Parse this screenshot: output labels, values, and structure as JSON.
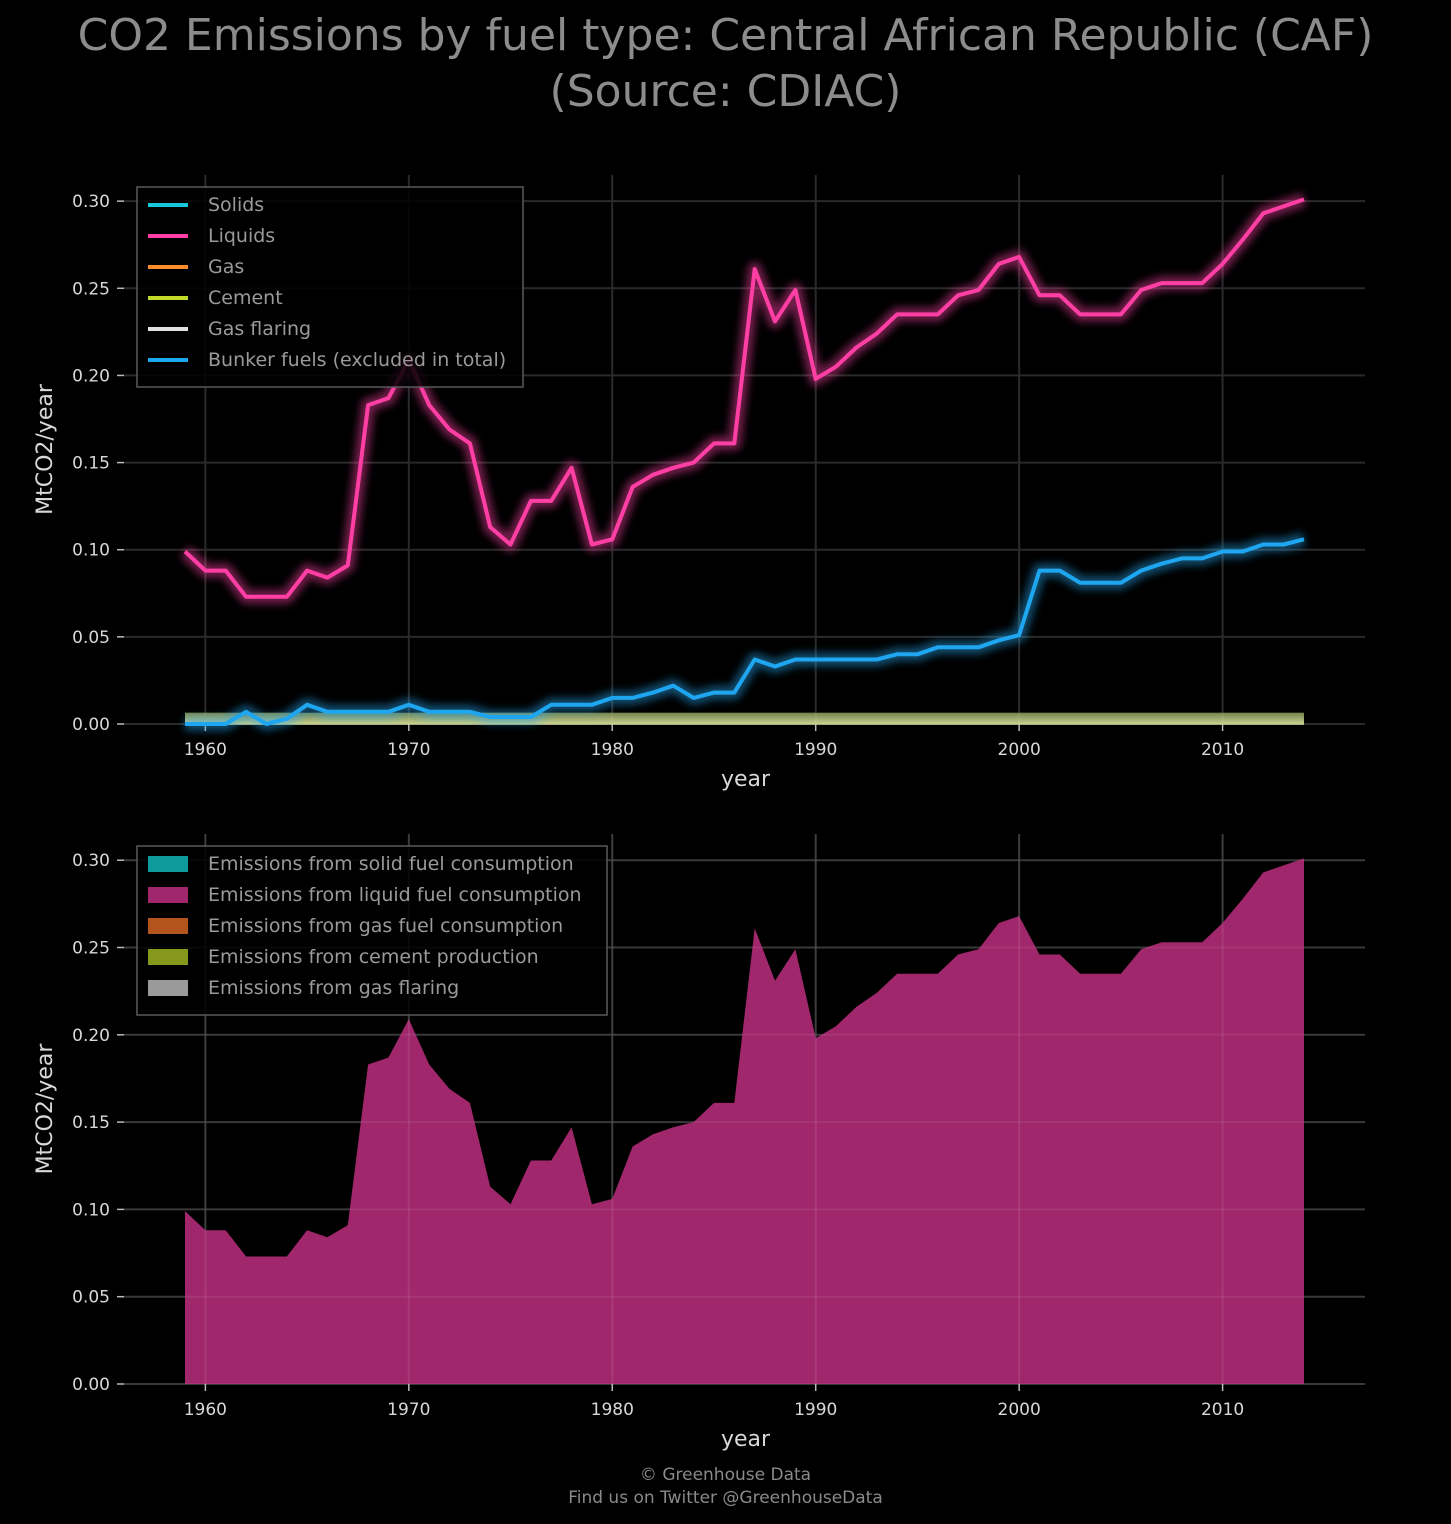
{
  "title": {
    "line1": "CO2 Emissions by fuel type: Central African Republic (CAF)",
    "line2": "(Source: CDIAC)"
  },
  "footer": {
    "line1": "© Greenhouse Data",
    "line2": "Find us on Twitter @GreenhouseData"
  },
  "chart_data": [
    {
      "type": "line",
      "xlabel": "year",
      "ylabel": "MtCO2/year",
      "xlim": [
        1956,
        2017
      ],
      "ylim": [
        0,
        0.315
      ],
      "xticks": [
        1960,
        1970,
        1980,
        1990,
        2000,
        2010
      ],
      "yticks": [
        "0.00",
        "0.05",
        "0.10",
        "0.15",
        "0.20",
        "0.25",
        "0.30"
      ],
      "grid": true,
      "legend_position": "top-left",
      "x": [
        1959,
        1960,
        1961,
        1962,
        1963,
        1964,
        1965,
        1966,
        1967,
        1968,
        1969,
        1970,
        1971,
        1972,
        1973,
        1974,
        1975,
        1976,
        1977,
        1978,
        1979,
        1980,
        1981,
        1982,
        1983,
        1984,
        1985,
        1986,
        1987,
        1988,
        1989,
        1990,
        1991,
        1992,
        1993,
        1994,
        1995,
        1996,
        1997,
        1998,
        1999,
        2000,
        2001,
        2002,
        2003,
        2004,
        2005,
        2006,
        2007,
        2008,
        2009,
        2010,
        2011,
        2012,
        2013,
        2014
      ],
      "series": [
        {
          "name": "Solids",
          "color": "#17c8d8",
          "values": [
            0,
            0,
            0,
            0,
            0,
            0,
            0,
            0,
            0,
            0,
            0,
            0,
            0,
            0,
            0,
            0,
            0,
            0,
            0,
            0,
            0,
            0,
            0,
            0,
            0,
            0,
            0,
            0,
            0,
            0,
            0,
            0,
            0,
            0,
            0,
            0,
            0,
            0,
            0,
            0,
            0,
            0,
            0,
            0,
            0,
            0,
            0,
            0,
            0,
            0,
            0,
            0,
            0,
            0,
            0,
            0
          ]
        },
        {
          "name": "Liquids",
          "color": "#ff3fa4",
          "values": [
            0.099,
            0.088,
            0.088,
            0.073,
            0.073,
            0.073,
            0.088,
            0.084,
            0.091,
            0.183,
            0.187,
            0.209,
            0.183,
            0.169,
            0.161,
            0.113,
            0.103,
            0.128,
            0.128,
            0.147,
            0.103,
            0.106,
            0.136,
            0.143,
            0.147,
            0.15,
            0.161,
            0.161,
            0.261,
            0.231,
            0.249,
            0.198,
            0.205,
            0.216,
            0.224,
            0.235,
            0.235,
            0.235,
            0.246,
            0.249,
            0.264,
            0.268,
            0.246,
            0.246,
            0.235,
            0.235,
            0.235,
            0.249,
            0.253,
            0.253,
            0.253,
            0.264,
            0.278,
            0.293,
            0.297,
            0.301
          ]
        },
        {
          "name": "Gas",
          "color": "#ff8c2a",
          "values": [
            0,
            0,
            0,
            0,
            0,
            0,
            0,
            0,
            0,
            0,
            0,
            0,
            0,
            0,
            0,
            0,
            0,
            0,
            0,
            0,
            0,
            0,
            0,
            0,
            0,
            0,
            0,
            0,
            0,
            0,
            0,
            0,
            0,
            0,
            0,
            0,
            0,
            0,
            0,
            0,
            0,
            0,
            0,
            0,
            0,
            0,
            0,
            0,
            0,
            0,
            0,
            0,
            0,
            0,
            0,
            0
          ]
        },
        {
          "name": "Cement",
          "color": "#c2d82a",
          "values": [
            0,
            0,
            0,
            0,
            0,
            0,
            0,
            0,
            0,
            0,
            0,
            0,
            0,
            0,
            0,
            0,
            0,
            0,
            0,
            0,
            0,
            0,
            0,
            0,
            0,
            0,
            0,
            0,
            0,
            0,
            0,
            0,
            0,
            0,
            0,
            0,
            0,
            0,
            0,
            0,
            0,
            0,
            0,
            0,
            0,
            0,
            0,
            0,
            0,
            0,
            0,
            0,
            0,
            0,
            0,
            0
          ]
        },
        {
          "name": "Gas flaring",
          "color": "#e0e0e0",
          "values": [
            0,
            0,
            0,
            0,
            0,
            0,
            0,
            0,
            0,
            0,
            0,
            0,
            0,
            0,
            0,
            0,
            0,
            0,
            0,
            0,
            0,
            0,
            0,
            0,
            0,
            0,
            0,
            0,
            0,
            0,
            0,
            0,
            0,
            0,
            0,
            0,
            0,
            0,
            0,
            0,
            0,
            0,
            0,
            0,
            0,
            0,
            0,
            0,
            0,
            0,
            0,
            0,
            0,
            0,
            0,
            0
          ]
        },
        {
          "name": "Bunker fuels (excluded in total)",
          "color": "#1ea7f0",
          "values": [
            0,
            0,
            0,
            0.007,
            0,
            0.003,
            0.011,
            0.007,
            0.007,
            0.007,
            0.007,
            0.011,
            0.007,
            0.007,
            0.007,
            0.004,
            0.004,
            0.004,
            0.011,
            0.011,
            0.011,
            0.015,
            0.015,
            0.018,
            0.022,
            0.015,
            0.018,
            0.018,
            0.037,
            0.033,
            0.037,
            0.037,
            0.037,
            0.037,
            0.037,
            0.04,
            0.04,
            0.044,
            0.044,
            0.044,
            0.048,
            0.051,
            0.088,
            0.088,
            0.081,
            0.081,
            0.081,
            0.088,
            0.092,
            0.095,
            0.095,
            0.099,
            0.099,
            0.103,
            0.103,
            0.106
          ]
        }
      ]
    },
    {
      "type": "area",
      "stacked": true,
      "xlabel": "year",
      "ylabel": "MtCO2/year",
      "xlim": [
        1956,
        2017
      ],
      "ylim": [
        0,
        0.315
      ],
      "xticks": [
        1960,
        1970,
        1980,
        1990,
        2000,
        2010
      ],
      "yticks": [
        "0.00",
        "0.05",
        "0.10",
        "0.15",
        "0.20",
        "0.25",
        "0.30"
      ],
      "grid": true,
      "legend_position": "top-left",
      "x": [
        1959,
        1960,
        1961,
        1962,
        1963,
        1964,
        1965,
        1966,
        1967,
        1968,
        1969,
        1970,
        1971,
        1972,
        1973,
        1974,
        1975,
        1976,
        1977,
        1978,
        1979,
        1980,
        1981,
        1982,
        1983,
        1984,
        1985,
        1986,
        1987,
        1988,
        1989,
        1990,
        1991,
        1992,
        1993,
        1994,
        1995,
        1996,
        1997,
        1998,
        1999,
        2000,
        2001,
        2002,
        2003,
        2004,
        2005,
        2006,
        2007,
        2008,
        2009,
        2010,
        2011,
        2012,
        2013,
        2014
      ],
      "series": [
        {
          "name": "Emissions from solid fuel consumption",
          "color": "#0f9a9e",
          "values": [
            0,
            0,
            0,
            0,
            0,
            0,
            0,
            0,
            0,
            0,
            0,
            0,
            0,
            0,
            0,
            0,
            0,
            0,
            0,
            0,
            0,
            0,
            0,
            0,
            0,
            0,
            0,
            0,
            0,
            0,
            0,
            0,
            0,
            0,
            0,
            0,
            0,
            0,
            0,
            0,
            0,
            0,
            0,
            0,
            0,
            0,
            0,
            0,
            0,
            0,
            0,
            0,
            0,
            0,
            0,
            0
          ]
        },
        {
          "name": "Emissions from liquid fuel consumption",
          "color": "#a0276b",
          "values": [
            0.099,
            0.088,
            0.088,
            0.073,
            0.073,
            0.073,
            0.088,
            0.084,
            0.091,
            0.183,
            0.187,
            0.209,
            0.183,
            0.169,
            0.161,
            0.113,
            0.103,
            0.128,
            0.128,
            0.147,
            0.103,
            0.106,
            0.136,
            0.143,
            0.147,
            0.15,
            0.161,
            0.161,
            0.261,
            0.231,
            0.249,
            0.198,
            0.205,
            0.216,
            0.224,
            0.235,
            0.235,
            0.235,
            0.246,
            0.249,
            0.264,
            0.268,
            0.246,
            0.246,
            0.235,
            0.235,
            0.235,
            0.249,
            0.253,
            0.253,
            0.253,
            0.264,
            0.278,
            0.293,
            0.297,
            0.301
          ]
        },
        {
          "name": "Emissions from gas fuel consumption",
          "color": "#b3551c",
          "values": [
            0,
            0,
            0,
            0,
            0,
            0,
            0,
            0,
            0,
            0,
            0,
            0,
            0,
            0,
            0,
            0,
            0,
            0,
            0,
            0,
            0,
            0,
            0,
            0,
            0,
            0,
            0,
            0,
            0,
            0,
            0,
            0,
            0,
            0,
            0,
            0,
            0,
            0,
            0,
            0,
            0,
            0,
            0,
            0,
            0,
            0,
            0,
            0,
            0,
            0,
            0,
            0,
            0,
            0,
            0,
            0
          ]
        },
        {
          "name": "Emissions from cement production",
          "color": "#86981c",
          "values": [
            0,
            0,
            0,
            0,
            0,
            0,
            0,
            0,
            0,
            0,
            0,
            0,
            0,
            0,
            0,
            0,
            0,
            0,
            0,
            0,
            0,
            0,
            0,
            0,
            0,
            0,
            0,
            0,
            0,
            0,
            0,
            0,
            0,
            0,
            0,
            0,
            0,
            0,
            0,
            0,
            0,
            0,
            0,
            0,
            0,
            0,
            0,
            0,
            0,
            0,
            0,
            0,
            0,
            0,
            0,
            0
          ]
        },
        {
          "name": "Emissions from gas flaring",
          "color": "#9a9a9a",
          "values": [
            0,
            0,
            0,
            0,
            0,
            0,
            0,
            0,
            0,
            0,
            0,
            0,
            0,
            0,
            0,
            0,
            0,
            0,
            0,
            0,
            0,
            0,
            0,
            0,
            0,
            0,
            0,
            0,
            0,
            0,
            0,
            0,
            0,
            0,
            0,
            0,
            0,
            0,
            0,
            0,
            0,
            0,
            0,
            0,
            0,
            0,
            0,
            0,
            0,
            0,
            0,
            0,
            0,
            0,
            0,
            0
          ]
        }
      ]
    }
  ]
}
